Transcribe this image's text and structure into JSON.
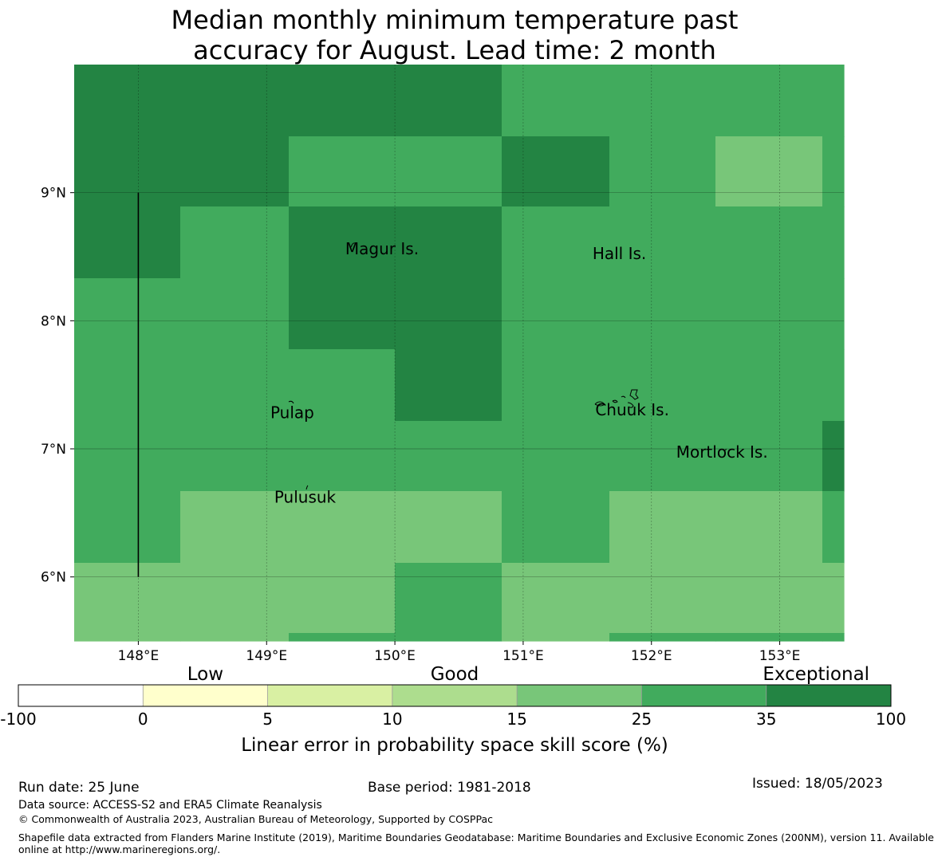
{
  "title": {
    "line1": "Median monthly minimum temperature past",
    "line2": "accuracy for August. Lead time: 2 month"
  },
  "map": {
    "x_ticks": [
      "148°E",
      "149°E",
      "150°E",
      "151°E",
      "152°E",
      "153°E"
    ],
    "y_ticks": [
      "9°N",
      "8°N",
      "7°N",
      "6°N"
    ],
    "lon_range": [
      147.5,
      153.5
    ],
    "lat_range": [
      5.5,
      10.0
    ],
    "grid_lon_edges": [
      147.5,
      148.33,
      149.17,
      150.0,
      150.83,
      151.67,
      152.5,
      153.33,
      153.5
    ],
    "grid_lat_edges": [
      10.0,
      9.44,
      8.89,
      8.33,
      7.78,
      7.22,
      6.67,
      6.11,
      5.56,
      5.5
    ],
    "skill_classes_by_row": [
      [
        6,
        6,
        6,
        6,
        5,
        5,
        5,
        5
      ],
      [
        6,
        6,
        5,
        5,
        6,
        5,
        4,
        5
      ],
      [
        6,
        5,
        6,
        6,
        5,
        5,
        5,
        5
      ],
      [
        5,
        5,
        6,
        6,
        5,
        5,
        5,
        5
      ],
      [
        5,
        5,
        5,
        6,
        5,
        5,
        5,
        5
      ],
      [
        5,
        5,
        5,
        5,
        5,
        5,
        5,
        6
      ],
      [
        5,
        4,
        4,
        4,
        5,
        4,
        4,
        5
      ],
      [
        4,
        4,
        4,
        5,
        4,
        4,
        4,
        4
      ],
      [
        4,
        4,
        5,
        5,
        4,
        5,
        5,
        5
      ]
    ],
    "places": [
      {
        "name": "Magur Is.",
        "lon": 149.9,
        "lat": 8.52
      },
      {
        "name": "Hall Is.",
        "lon": 151.75,
        "lat": 8.48
      },
      {
        "name": "Pulap",
        "lon": 149.2,
        "lat": 7.24
      },
      {
        "name": "Chuuk Is.",
        "lon": 151.85,
        "lat": 7.26
      },
      {
        "name": "Mortlock Is.",
        "lon": 152.55,
        "lat": 6.93
      },
      {
        "name": "Pulusuk",
        "lon": 149.3,
        "lat": 6.58
      }
    ],
    "boundary_line": {
      "lon": 148.0,
      "lat_from": 6.0,
      "lat_to": 9.0
    }
  },
  "legend": {
    "category_labels": [
      {
        "label": "Low",
        "at": 1.5
      },
      {
        "label": "Good",
        "at": 3.5
      },
      {
        "label": "Exceptional",
        "at": 6.4
      }
    ],
    "boundaries": [
      "-100",
      "0",
      "5",
      "10",
      "15",
      "25",
      "35",
      "100"
    ],
    "colors": [
      "#ffffff",
      "#ffffcc",
      "#d9f0a3",
      "#addd8e",
      "#78c679",
      "#41ab5d",
      "#238443"
    ],
    "title": "Linear error in probability space skill score (%)"
  },
  "footer": {
    "run_date": "Run date: 25 June",
    "base_period": "Base period: 1981-2018",
    "issued": "Issued: 18/05/2023",
    "data_source": "Data source: ACCESS-S2 and ERA5 Climate Reanalysis",
    "copyright": "© Commonwealth of Australia 2023, Australian Bureau of Meteorology, Supported by COSPPac",
    "shapefile_line1": "Shapefile data extracted from Flanders Marine Institute (2019), Maritime Boundaries Geodatabase: Maritime Boundaries and Exclusive Economic Zones (200NM), version 11. Available",
    "shapefile_line2": "online at http://www.marineregions.org/."
  }
}
